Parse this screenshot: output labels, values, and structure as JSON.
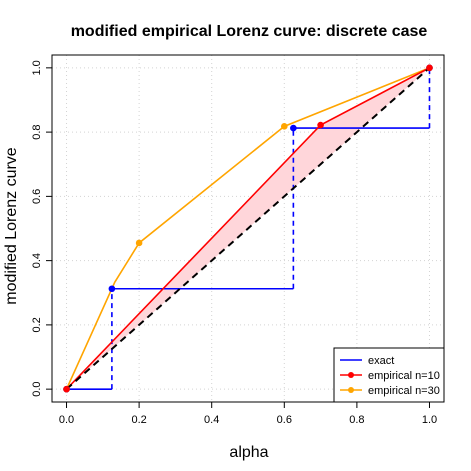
{
  "chart_data": {
    "type": "line",
    "title": "modified empirical Lorenz curve: discrete case",
    "xlabel": "alpha",
    "ylabel": "modified Lorenz curve",
    "xlim": [
      -0.04,
      1.04
    ],
    "ylim": [
      -0.04,
      1.04
    ],
    "xticks": [
      0.0,
      0.2,
      0.4,
      0.6,
      0.8,
      1.0
    ],
    "xtick_labels": [
      "0.0",
      "0.2",
      "0.4",
      "0.6",
      "0.8",
      "1.0"
    ],
    "yticks": [
      0.0,
      0.2,
      0.4,
      0.6,
      0.8,
      1.0
    ],
    "ytick_labels": [
      "0.0",
      "0.2",
      "0.4",
      "0.6",
      "0.8",
      "1.0"
    ],
    "grid": true,
    "legend_position": "bottom-right",
    "diagonal": {
      "x": [
        0,
        1
      ],
      "y": [
        0,
        1
      ],
      "color": "#000000",
      "style": "dashed"
    },
    "shaded_region": {
      "between": [
        "empirical n=10",
        "diagonal"
      ],
      "color": "#ffd6da"
    },
    "exact_jumps": [
      0.125,
      0.625,
      1.0
    ],
    "series": [
      {
        "name": "exact",
        "color": "#0000ff",
        "style": "step",
        "x": [
          0,
          0.125,
          0.125,
          0.625,
          0.625,
          1.0,
          1.0
        ],
        "y": [
          0,
          0,
          0.3125,
          0.3125,
          0.8125,
          0.8125,
          1.0
        ],
        "points": {
          "x": [
            0,
            0.125,
            0.625,
            1.0
          ],
          "y": [
            0,
            0.3125,
            0.8125,
            1.0
          ]
        }
      },
      {
        "name": "empirical n=10",
        "color": "#ff0000",
        "style": "line",
        "x": [
          0,
          0.7,
          1.0
        ],
        "y": [
          0,
          0.822,
          1.0
        ],
        "points": {
          "x": [
            0,
            0.7,
            1.0
          ],
          "y": [
            0,
            0.822,
            1.0
          ]
        }
      },
      {
        "name": "empirical n=30",
        "color": "#ffa500",
        "style": "line",
        "x": [
          0,
          0.133,
          0.2,
          0.6,
          1.0
        ],
        "y": [
          0,
          0.333,
          0.455,
          0.818,
          1.0
        ],
        "points": {
          "x": [
            0,
            0.2,
            0.6,
            1.0
          ],
          "y": [
            0,
            0.455,
            0.818,
            1.0
          ]
        }
      }
    ]
  }
}
